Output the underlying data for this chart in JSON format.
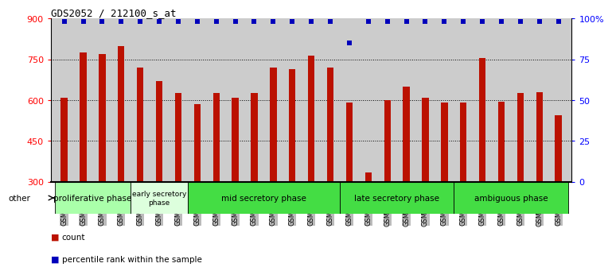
{
  "title": "GDS2052 / 212100_s_at",
  "samples": [
    "GSM109814",
    "GSM109815",
    "GSM109816",
    "GSM109817",
    "GSM109820",
    "GSM109821",
    "GSM109822",
    "GSM109824",
    "GSM109825",
    "GSM109826",
    "GSM109827",
    "GSM109828",
    "GSM109829",
    "GSM109830",
    "GSM109831",
    "GSM109834",
    "GSM109835",
    "GSM109836",
    "GSM109837",
    "GSM109838",
    "GSM109839",
    "GSM109818",
    "GSM109819",
    "GSM109823",
    "GSM109832",
    "GSM109833",
    "GSM109840"
  ],
  "bar_values": [
    610,
    775,
    770,
    800,
    720,
    670,
    625,
    585,
    625,
    610,
    625,
    720,
    715,
    765,
    720,
    590,
    335,
    600,
    650,
    610,
    590,
    590,
    755,
    595,
    625,
    630,
    545
  ],
  "percentile_values": [
    98,
    98,
    98,
    98,
    98,
    98,
    98,
    98,
    98,
    98,
    98,
    98,
    98,
    98,
    98,
    85,
    98,
    98,
    98,
    98,
    98,
    98,
    98,
    98,
    98,
    98,
    98
  ],
  "phases": [
    {
      "label": "proliferative phase",
      "start": 0,
      "end": 4,
      "color": "#aaffaa",
      "text_size": 7.5
    },
    {
      "label": "early secretory\nphase",
      "start": 4,
      "end": 7,
      "color": "#ddffdd",
      "text_size": 6.5
    },
    {
      "label": "mid secretory phase",
      "start": 7,
      "end": 15,
      "color": "#44dd44",
      "text_size": 7.5
    },
    {
      "label": "late secretory phase",
      "start": 15,
      "end": 21,
      "color": "#44dd44",
      "text_size": 7.5
    },
    {
      "label": "ambiguous phase",
      "start": 21,
      "end": 27,
      "color": "#44dd44",
      "text_size": 7.5
    }
  ],
  "bar_color": "#bb1100",
  "dot_color": "#0000bb",
  "ymin": 300,
  "ymax": 900,
  "yticks_left": [
    300,
    450,
    600,
    750,
    900
  ],
  "yticks_right": [
    0,
    25,
    50,
    75,
    100
  ],
  "grid_values": [
    450,
    600,
    750
  ],
  "bg_color": "#cccccc",
  "tick_bg_color": "#bbbbbb",
  "other_label": "other"
}
